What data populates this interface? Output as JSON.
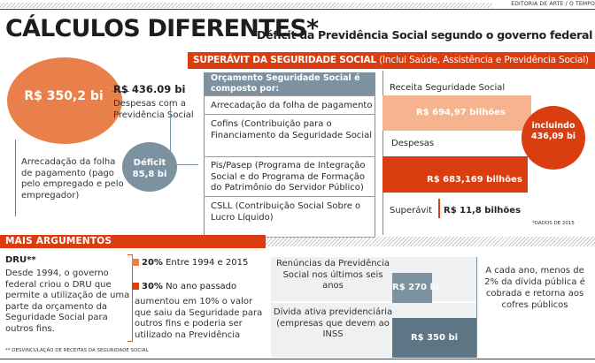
{
  "credit": "EDITORIA DE ARTE / O TEMPO",
  "header": {
    "title": "CÁLCULOS DIFERENTES*",
    "subtitle": "Déficit da Previdência Social segundo o governo federal"
  },
  "previdencia": {
    "arrecadacao_value": "R$ 350,2 bi",
    "arrecadacao_desc": "Arrecadação da folha de pagamento (pago pelo empregado e pelo empregador)",
    "despesas_value": "R$ 436.09 bi",
    "despesas_desc": "Despesas com a Previdência Social",
    "deficit_label": "Déficit",
    "deficit_value": "85,8 bi"
  },
  "composicao": {
    "title": "Orçamento Seguridade Social é composto por:",
    "items": [
      "Arrecadação da folha de pagamento",
      "Cofins (Contribuição para o Financiamento da Seguridade Social",
      "Pis/Pasep (Programa de Integração Social e do Programa de Formação do Patrimônio do Servidor Público)",
      "CSLL (Contribuição Social Sobre o Lucro Líquido)"
    ]
  },
  "superavit": {
    "banner_bold": "SUPERÁVIT DA SEGURIDADE SOCIAL",
    "banner_rest": " (Inclui Saúde, Assistência e Previdência Social)",
    "receita_label": "Receita Seguridade Social",
    "receita_value": "R$ 694,97 bilhões",
    "despesas_label": "Despesas",
    "despesas_value": "R$ 683,169 bilhões",
    "superavit_label": "Superávit",
    "superavit_value": "R$ 11,8 bilhões",
    "incluindo_label": "incluindo",
    "incluindo_value": "436,09 bi",
    "source": "*DADOS DE 2015"
  },
  "argumentos": {
    "banner": "MAIS ARGUMENTOS",
    "dru_title": "DRU**",
    "dru_text": "Desde 1994, o governo federal criou o DRU que permite a utilização de uma parte da orçamento da Seguridade Social para outros fins.",
    "stat1_bold": "20%",
    "stat1_rest": " Entre 1994 e 2015",
    "stat2_bold": "30%",
    "stat2_rest": " No ano passado",
    "aumento_text": "aumentou em 10% o valor que saiu da Seguridade para outros fins e poderia ser utilizado na Previdência",
    "note": "** DESVINCULAÇÃO DE RECEITAS DA SEGURIDADE SOCIAL",
    "renuncias_label": "Renúncias da Previdência Social nos últimos seis anos",
    "renuncias_value": "R$ 270 bi",
    "divida_label": "Dívida ativa previdenciária (empresas que devem ao INSS",
    "divida_value": "R$ 350 bi",
    "right_text": "A cada ano, menos de 2% da dívida pública é cobrada e retorna aos cofres públicos"
  },
  "colors": {
    "orange": "#e9804c",
    "red": "#d93d10",
    "slate": "#7c92a0",
    "light_orange": "#f5b48f"
  }
}
